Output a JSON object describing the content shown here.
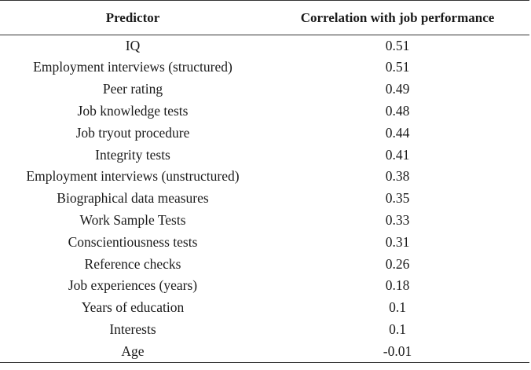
{
  "table": {
    "headers": [
      "Predictor",
      "Correlation with job performance"
    ],
    "rows": [
      [
        "IQ",
        "0.51"
      ],
      [
        "Employment interviews (structured)",
        "0.51"
      ],
      [
        "Peer rating",
        "0.49"
      ],
      [
        "Job knowledge tests",
        "0.48"
      ],
      [
        "Job tryout procedure",
        "0.44"
      ],
      [
        "Integrity tests",
        "0.41"
      ],
      [
        "Employment interviews (unstructured)",
        "0.38"
      ],
      [
        "Biographical data measures",
        "0.35"
      ],
      [
        "Work Sample Tests",
        "0.33"
      ],
      [
        "Conscientiousness tests",
        "0.31"
      ],
      [
        "Reference checks",
        "0.26"
      ],
      [
        "Job experiences (years)",
        "0.18"
      ],
      [
        "Years of education",
        "0.1"
      ],
      [
        "Interests",
        "0.1"
      ],
      [
        "Age",
        "-0.01"
      ]
    ]
  }
}
